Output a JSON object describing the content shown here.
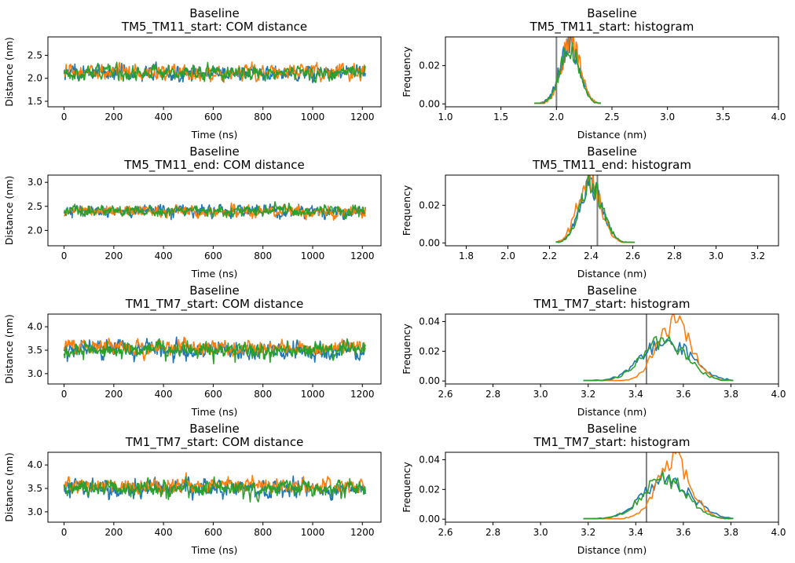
{
  "colors": {
    "series": [
      "#1f77b4",
      "#ff7f0e",
      "#2ca02c"
    ],
    "vline": "#808080",
    "axes": "#000000",
    "background": "#ffffff"
  },
  "chart_data": [
    {
      "type": "line",
      "title": "Baseline\nTM5_TM11_start: COM distance",
      "xlabel": "Time (ns)",
      "ylabel": "Distance (nm)",
      "xlim": [
        -65,
        1275
      ],
      "ylim": [
        1.38,
        2.9
      ],
      "xticks": [
        0,
        200,
        400,
        600,
        800,
        1000,
        1200
      ],
      "yticks": [
        1.5,
        2.0,
        2.5
      ],
      "xticklabels": [
        "0",
        "200",
        "400",
        "600",
        "800",
        "1000",
        "1200"
      ],
      "yticklabels": [
        "1.5",
        "2.0",
        "2.5"
      ],
      "x_range": [
        0,
        1212
      ],
      "series": [
        {
          "mean": 2.12,
          "sd": 0.09
        },
        {
          "mean": 2.13,
          "sd": 0.085
        },
        {
          "mean": 2.12,
          "sd": 0.085
        }
      ]
    },
    {
      "type": "line",
      "title": "Baseline\nTM5_TM11_start: histogram",
      "xlabel": "Distance (nm)",
      "ylabel": "Frequency",
      "xlim": [
        1.0,
        4.0
      ],
      "ylim": [
        -0.0015,
        0.035
      ],
      "xticks": [
        1.0,
        1.5,
        2.0,
        2.5,
        3.0,
        3.5,
        4.0
      ],
      "yticks": [
        0.0,
        0.02
      ],
      "xticklabels": [
        "1.0",
        "1.5",
        "2.0",
        "2.5",
        "3.0",
        "3.5",
        "4.0"
      ],
      "yticklabels": [
        "0.00",
        "0.02"
      ],
      "vline": 2.0,
      "x_range": [
        1.8,
        2.4
      ],
      "series": [
        {
          "mean": 2.12,
          "sd": 0.09,
          "peak": 0.031
        },
        {
          "mean": 2.13,
          "sd": 0.085,
          "peak": 0.033
        },
        {
          "mean": 2.12,
          "sd": 0.085,
          "peak": 0.03
        }
      ]
    },
    {
      "type": "line",
      "title": "Baseline\nTM5_TM11_end: COM distance",
      "xlabel": "Time (ns)",
      "ylabel": "Distance (nm)",
      "xlim": [
        -65,
        1275
      ],
      "ylim": [
        1.68,
        3.15
      ],
      "xticks": [
        0,
        200,
        400,
        600,
        800,
        1000,
        1200
      ],
      "yticks": [
        2.0,
        2.5,
        3.0
      ],
      "xticklabels": [
        "0",
        "200",
        "400",
        "600",
        "800",
        "1000",
        "1200"
      ],
      "yticklabels": [
        "2.0",
        "2.5",
        "3.0"
      ],
      "x_range": [
        0,
        1212
      ],
      "series": [
        {
          "mean": 2.4,
          "sd": 0.065
        },
        {
          "mean": 2.39,
          "sd": 0.065
        },
        {
          "mean": 2.41,
          "sd": 0.065
        }
      ]
    },
    {
      "type": "line",
      "title": "Baseline\nTM5_TM11_end: histogram",
      "xlabel": "Distance (nm)",
      "ylabel": "Frequency",
      "xlim": [
        1.7,
        3.3
      ],
      "ylim": [
        -0.0015,
        0.036
      ],
      "xticks": [
        1.8,
        2.0,
        2.2,
        2.4,
        2.6,
        2.8,
        3.0,
        3.2
      ],
      "yticks": [
        0.0,
        0.02
      ],
      "xticklabels": [
        "1.8",
        "2.0",
        "2.2",
        "2.4",
        "2.6",
        "2.8",
        "3.0",
        "3.2"
      ],
      "yticklabels": [
        "0.00",
        "0.02"
      ],
      "vline": 2.43,
      "x_range": [
        2.23,
        2.61
      ],
      "series": [
        {
          "mean": 2.4,
          "sd": 0.055,
          "peak": 0.03
        },
        {
          "mean": 2.39,
          "sd": 0.055,
          "peak": 0.034
        },
        {
          "mean": 2.4,
          "sd": 0.055,
          "peak": 0.031
        }
      ]
    },
    {
      "type": "line",
      "title": "Baseline\nTM1_TM7_start: COM distance",
      "xlabel": "Time (ns)",
      "ylabel": "Distance (nm)",
      "xlim": [
        -65,
        1275
      ],
      "ylim": [
        2.78,
        4.27
      ],
      "xticks": [
        0,
        200,
        400,
        600,
        800,
        1000,
        1200
      ],
      "yticks": [
        3.0,
        3.5,
        4.0
      ],
      "xticklabels": [
        "0",
        "200",
        "400",
        "600",
        "800",
        "1000",
        "1200"
      ],
      "yticklabels": [
        "3.0",
        "3.5",
        "4.0"
      ],
      "x_range": [
        0,
        1212
      ],
      "series": [
        {
          "mean": 3.5,
          "sd": 0.1
        },
        {
          "mean": 3.56,
          "sd": 0.08
        },
        {
          "mean": 3.51,
          "sd": 0.09
        }
      ]
    },
    {
      "type": "line",
      "title": "Baseline\nTM1_TM7_start: histogram",
      "xlabel": "Distance (nm)",
      "ylabel": "Frequency",
      "xlim": [
        2.6,
        4.0
      ],
      "ylim": [
        -0.002,
        0.045
      ],
      "xticks": [
        2.6,
        2.8,
        3.0,
        3.2,
        3.4,
        3.6,
        3.8,
        4.0
      ],
      "yticks": [
        0.0,
        0.02,
        0.04
      ],
      "xticklabels": [
        "2.6",
        "2.8",
        "3.0",
        "3.2",
        "3.4",
        "3.6",
        "3.8",
        "4.0"
      ],
      "yticklabels": [
        "0.00",
        "0.02",
        "0.04"
      ],
      "vline": 3.445,
      "x_range": [
        3.18,
        3.81
      ],
      "series": [
        {
          "mean": 3.53,
          "sd": 0.1,
          "peak": 0.027
        },
        {
          "mean": 3.56,
          "sd": 0.07,
          "peak": 0.04
        },
        {
          "mean": 3.52,
          "sd": 0.09,
          "peak": 0.028
        }
      ]
    },
    {
      "type": "line",
      "title": "Baseline\nTM1_TM7_start: COM distance",
      "xlabel": "Time (ns)",
      "ylabel": "Distance (nm)",
      "xlim": [
        -65,
        1275
      ],
      "ylim": [
        2.78,
        4.27
      ],
      "xticks": [
        0,
        200,
        400,
        600,
        800,
        1000,
        1200
      ],
      "yticks": [
        3.0,
        3.5,
        4.0
      ],
      "xticklabels": [
        "0",
        "200",
        "400",
        "600",
        "800",
        "1000",
        "1200"
      ],
      "yticklabels": [
        "3.0",
        "3.5",
        "4.0"
      ],
      "x_range": [
        0,
        1212
      ],
      "series": [
        {
          "mean": 3.5,
          "sd": 0.1
        },
        {
          "mean": 3.56,
          "sd": 0.08
        },
        {
          "mean": 3.51,
          "sd": 0.09
        }
      ]
    },
    {
      "type": "line",
      "title": "Baseline\nTM1_TM7_start: histogram",
      "xlabel": "Distance (nm)",
      "ylabel": "Frequency",
      "xlim": [
        2.6,
        4.0
      ],
      "ylim": [
        -0.002,
        0.045
      ],
      "xticks": [
        2.6,
        2.8,
        3.0,
        3.2,
        3.4,
        3.6,
        3.8,
        4.0
      ],
      "yticks": [
        0.0,
        0.02,
        0.04
      ],
      "xticklabels": [
        "2.6",
        "2.8",
        "3.0",
        "3.2",
        "3.4",
        "3.6",
        "3.8",
        "4.0"
      ],
      "yticklabels": [
        "0.00",
        "0.02",
        "0.04"
      ],
      "vline": 3.445,
      "x_range": [
        3.18,
        3.81
      ],
      "series": [
        {
          "mean": 3.53,
          "sd": 0.1,
          "peak": 0.027
        },
        {
          "mean": 3.56,
          "sd": 0.07,
          "peak": 0.04
        },
        {
          "mean": 3.52,
          "sd": 0.09,
          "peak": 0.028
        }
      ]
    }
  ]
}
